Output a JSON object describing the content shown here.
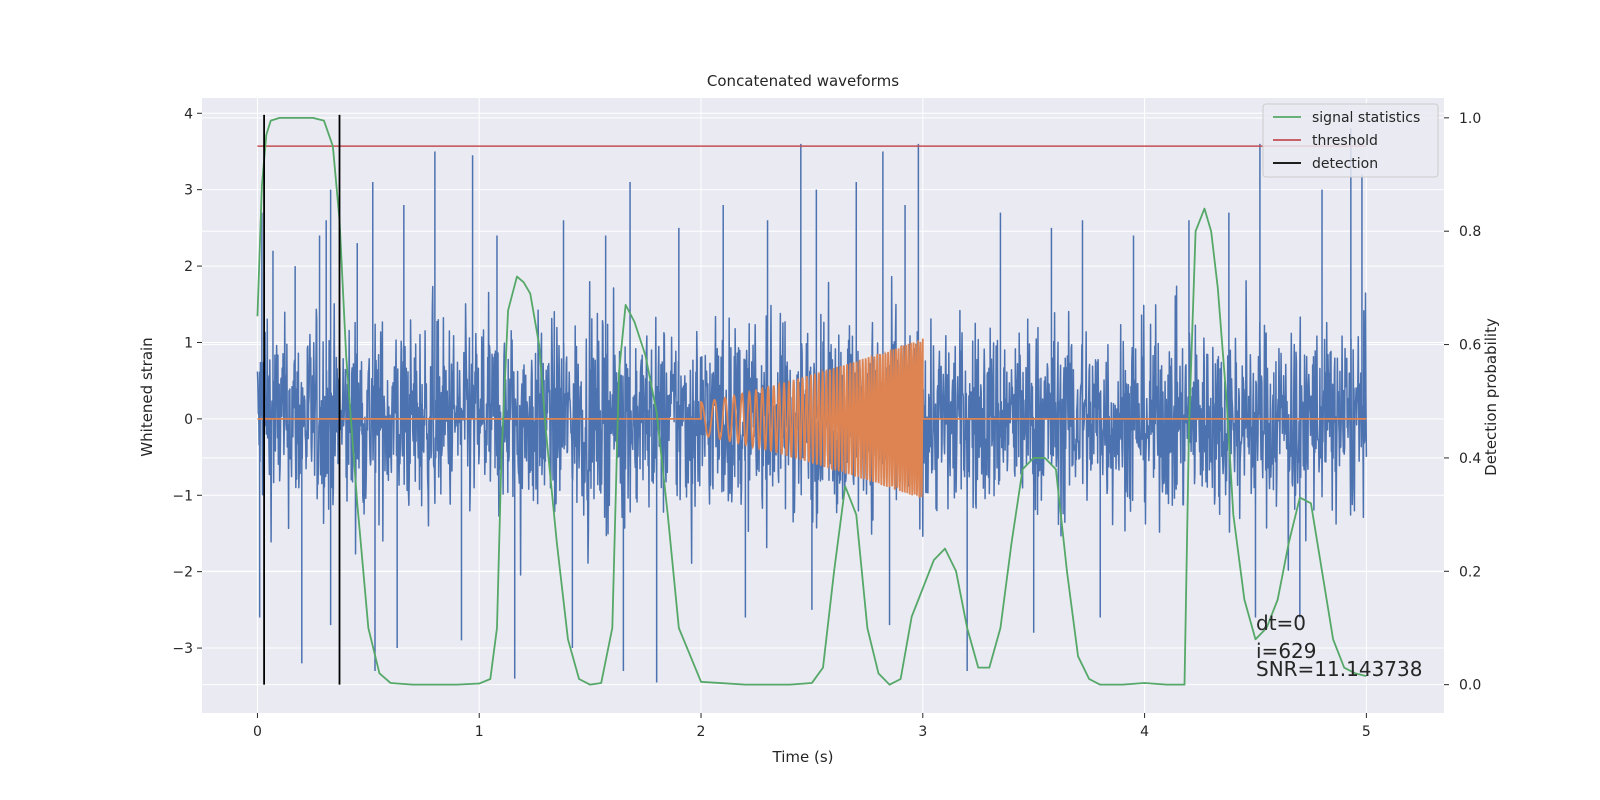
{
  "chart_data": {
    "type": "line",
    "title": "Concatenated waveforms",
    "xlabel": "Time (s)",
    "ylabel": "Whitened strain",
    "y2label": "Detection probability",
    "xlim": [
      -0.25,
      5.35
    ],
    "ylim": [
      -3.85,
      4.2
    ],
    "y2lim": [
      -0.05,
      1.035
    ],
    "xticks": [
      0,
      1,
      2,
      3,
      4,
      5
    ],
    "yticks": [
      -3,
      -2,
      -1,
      0,
      1,
      2,
      3,
      4
    ],
    "y2ticks": [
      0.0,
      0.2,
      0.4,
      0.6,
      0.8,
      1.0
    ],
    "ytick_labels": [
      "−3",
      "−2",
      "−1",
      "0",
      "1",
      "2",
      "3",
      "4"
    ],
    "y2tick_labels": [
      "0.0",
      "0.2",
      "0.4",
      "0.6",
      "0.8",
      "1.0"
    ],
    "grid": true,
    "legend_position": "top-right",
    "colors": {
      "noise": "#4c72b0",
      "template": "#dd8452",
      "signal_statistics": "#55a868",
      "threshold": "#c44e52",
      "detection": "#000000",
      "background": "#eaeaf2",
      "grid": "#ffffff"
    },
    "series": [
      {
        "name": "signal statistics",
        "axis": "right",
        "x": [
          0,
          0.02,
          0.04,
          0.06,
          0.1,
          0.15,
          0.2,
          0.25,
          0.3,
          0.34,
          0.37,
          0.4,
          0.45,
          0.5,
          0.55,
          0.6,
          0.7,
          0.8,
          0.9,
          1.0,
          1.05,
          1.08,
          1.1,
          1.13,
          1.17,
          1.2,
          1.23,
          1.27,
          1.3,
          1.35,
          1.4,
          1.45,
          1.5,
          1.55,
          1.6,
          1.63,
          1.66,
          1.7,
          1.75,
          1.8,
          1.85,
          1.9,
          2.0,
          2.2,
          2.4,
          2.5,
          2.55,
          2.6,
          2.65,
          2.7,
          2.75,
          2.8,
          2.85,
          2.9,
          2.95,
          3.0,
          3.05,
          3.1,
          3.15,
          3.2,
          3.25,
          3.3,
          3.35,
          3.4,
          3.45,
          3.5,
          3.55,
          3.6,
          3.65,
          3.7,
          3.75,
          3.8,
          3.9,
          4.0,
          4.1,
          4.18,
          4.2,
          4.23,
          4.27,
          4.3,
          4.33,
          4.37,
          4.4,
          4.45,
          4.5,
          4.55,
          4.6,
          4.65,
          4.7,
          4.75,
          4.8,
          4.85,
          4.9,
          4.95,
          5.0
        ],
        "values": [
          0.65,
          0.88,
          0.97,
          0.995,
          1.0,
          1.0,
          1.0,
          1.0,
          0.995,
          0.95,
          0.82,
          0.58,
          0.32,
          0.1,
          0.02,
          0.003,
          0.0,
          0.0,
          0.0,
          0.002,
          0.01,
          0.1,
          0.4,
          0.66,
          0.72,
          0.71,
          0.69,
          0.6,
          0.45,
          0.25,
          0.08,
          0.01,
          0.0,
          0.003,
          0.1,
          0.55,
          0.67,
          0.64,
          0.58,
          0.48,
          0.3,
          0.1,
          0.005,
          0.0,
          0.0,
          0.003,
          0.03,
          0.2,
          0.35,
          0.3,
          0.1,
          0.02,
          0.0,
          0.01,
          0.12,
          0.17,
          0.22,
          0.24,
          0.2,
          0.1,
          0.03,
          0.03,
          0.1,
          0.25,
          0.38,
          0.4,
          0.4,
          0.38,
          0.2,
          0.05,
          0.01,
          0.0,
          0.0,
          0.003,
          0.0,
          0.0,
          0.45,
          0.8,
          0.84,
          0.8,
          0.7,
          0.5,
          0.3,
          0.15,
          0.08,
          0.1,
          0.15,
          0.25,
          0.33,
          0.32,
          0.2,
          0.08,
          0.03,
          0.02,
          0.015
        ]
      },
      {
        "name": "threshold",
        "axis": "right",
        "x": [
          0,
          5.0
        ],
        "values": [
          0.95,
          0.95
        ]
      },
      {
        "name": "detection",
        "axis": "right",
        "x": [
          0.03,
          0.37
        ],
        "values": [
          1.0,
          1.0
        ]
      },
      {
        "name": "",
        "axis": "left",
        "kind": "whitened strain (noise)",
        "x_range": [
          0,
          5
        ],
        "envelope": 1.0,
        "peaks_x": [
          0.02,
          0.07,
          0.17,
          0.28,
          0.31,
          0.33,
          0.45,
          0.52,
          0.66,
          0.8,
          0.97,
          1.08,
          1.38,
          1.57,
          1.68,
          1.9,
          2.1,
          2.3,
          2.45,
          2.52,
          2.7,
          2.82,
          2.92,
          2.98,
          3.35,
          3.58,
          3.72,
          3.95,
          4.2,
          4.38,
          4.52,
          4.8,
          4.93,
          4.98
        ],
        "peaks_y": [
          2.7,
          2.2,
          2.0,
          2.4,
          2.6,
          3.0,
          2.3,
          3.1,
          2.8,
          3.5,
          3.45,
          2.4,
          2.6,
          2.4,
          3.1,
          2.5,
          2.8,
          2.6,
          3.6,
          3.0,
          3.1,
          3.5,
          2.8,
          3.6,
          2.7,
          2.5,
          2.6,
          2.4,
          2.6,
          2.7,
          3.6,
          3.0,
          3.8,
          3.2
        ],
        "troughs_x": [
          0.01,
          0.2,
          0.33,
          0.53,
          0.63,
          0.92,
          1.16,
          1.42,
          1.65,
          1.8,
          2.2,
          2.5,
          2.85,
          3.2,
          3.5,
          3.8,
          4.5,
          4.7
        ],
        "troughs_y": [
          -2.6,
          -3.2,
          -2.7,
          -3.3,
          -3.0,
          -2.9,
          -3.4,
          -3.0,
          -3.3,
          -3.45,
          -2.6,
          -2.5,
          -2.7,
          -3.3,
          -2.8,
          -2.6,
          -2.6,
          -2.6
        ]
      },
      {
        "name": "",
        "axis": "left",
        "kind": "injected chirp",
        "x_start": 2.0,
        "x_end": 3.0,
        "amp_start": 0.22,
        "amp_end": 1.05,
        "cycles": 55,
        "baseline": 0
      }
    ],
    "annotations": [
      "dt=0",
      "i=629",
      "SNR=11.143738"
    ]
  }
}
